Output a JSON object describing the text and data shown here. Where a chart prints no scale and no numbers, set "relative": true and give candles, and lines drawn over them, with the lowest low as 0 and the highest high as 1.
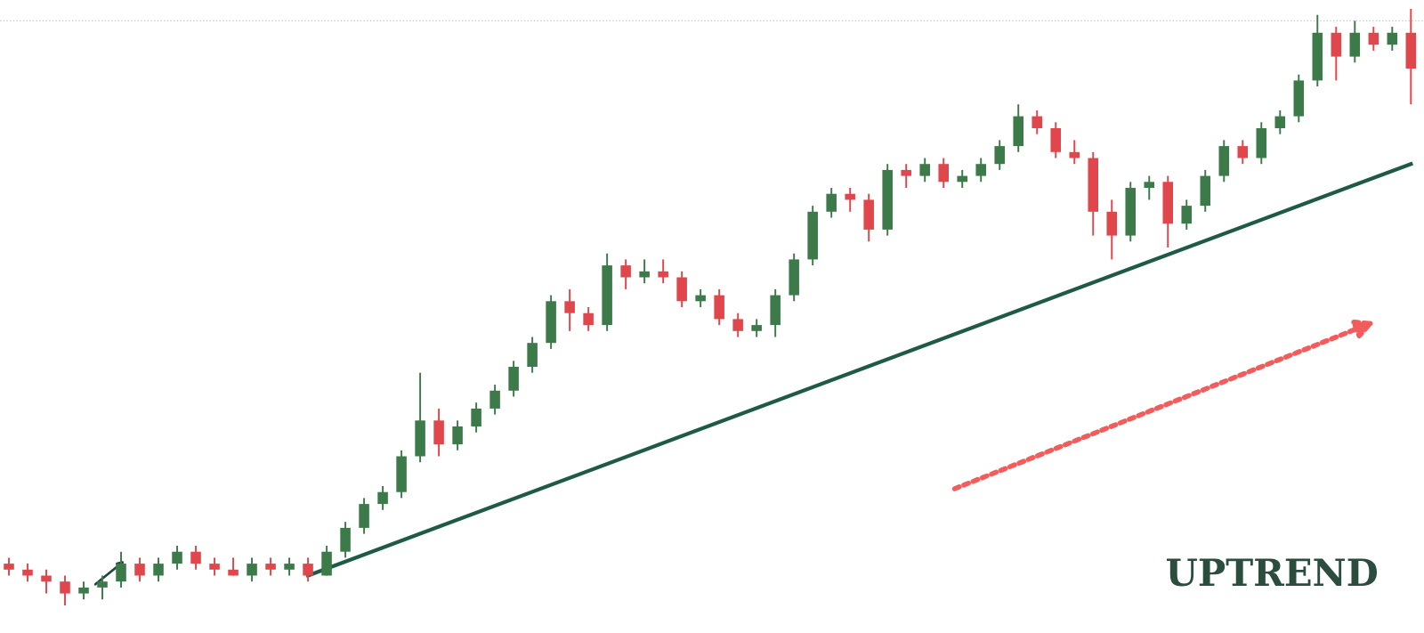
{
  "chart_data": {
    "type": "candlestick",
    "relative": true,
    "categories": [
      null,
      null,
      null,
      null,
      null,
      null,
      null,
      null,
      null,
      null,
      null,
      null,
      null,
      null,
      null,
      null,
      null,
      null,
      null,
      null,
      null,
      null,
      null,
      null,
      null,
      null,
      null,
      null,
      null,
      null,
      null,
      null,
      null,
      null,
      null,
      null,
      null,
      null,
      null,
      null,
      null,
      null,
      null,
      null,
      null,
      null,
      null,
      null,
      null,
      null,
      null,
      null,
      null,
      null,
      null,
      null,
      null,
      null,
      null,
      null,
      null,
      null,
      null,
      null,
      null,
      null,
      null,
      null,
      null,
      null,
      null,
      null,
      null,
      null,
      null,
      null
    ],
    "colors": [
      "#e0474c",
      "#e0474c",
      "#e0474c",
      "#e0474c",
      "#3d7a4a",
      "#3d7a4a",
      "#3d7a4a",
      "#e0474c",
      "#3d7a4a",
      "#3d7a4a",
      "#e0474c",
      "#e0474c",
      "#e0474c",
      "#3d7a4a",
      "#e0474c",
      "#3d7a4a",
      "#e0474c",
      "#3d7a4a",
      "#3d7a4a",
      "#3d7a4a",
      "#3d7a4a",
      "#3d7a4a",
      "#3d7a4a",
      "#e0474c",
      "#3d7a4a",
      "#3d7a4a",
      "#3d7a4a",
      "#3d7a4a",
      "#3d7a4a",
      "#3d7a4a",
      "#e0474c",
      "#e0474c",
      "#3d7a4a",
      "#e0474c",
      "#3d7a4a",
      "#e0474c",
      "#e0474c",
      "#3d7a4a",
      "#e0474c",
      "#e0474c",
      "#3d7a4a",
      "#3d7a4a",
      "#3d7a4a",
      "#3d7a4a",
      "#3d7a4a",
      "#e0474c",
      "#e0474c",
      "#3d7a4a",
      "#e0474c",
      "#3d7a4a",
      "#e0474c",
      "#3d7a4a",
      "#3d7a4a",
      "#3d7a4a",
      "#3d7a4a",
      "#e0474c",
      "#e0474c",
      "#e0474c",
      "#e0474c",
      "#e0474c",
      "#3d7a4a",
      "#3d7a4a",
      "#e0474c",
      "#3d7a4a",
      "#3d7a4a",
      "#3d7a4a",
      "#e0474c",
      "#3d7a4a",
      "#3d7a4a",
      "#3d7a4a",
      "#3d7a4a",
      "#e0474c",
      "#3d7a4a",
      "#e0474c",
      "#3d7a4a",
      "#e0474c"
    ],
    "ohlc": [
      [
        0.07,
        0.08,
        0.05,
        0.06
      ],
      [
        0.06,
        0.07,
        0.04,
        0.05
      ],
      [
        0.05,
        0.06,
        0.02,
        0.04
      ],
      [
        0.04,
        0.05,
        0.0,
        0.02
      ],
      [
        0.02,
        0.04,
        0.01,
        0.03
      ],
      [
        0.03,
        0.05,
        0.01,
        0.04
      ],
      [
        0.04,
        0.09,
        0.03,
        0.07
      ],
      [
        0.07,
        0.08,
        0.04,
        0.05
      ],
      [
        0.05,
        0.08,
        0.04,
        0.07
      ],
      [
        0.07,
        0.1,
        0.06,
        0.09
      ],
      [
        0.09,
        0.1,
        0.06,
        0.07
      ],
      [
        0.07,
        0.08,
        0.05,
        0.06
      ],
      [
        0.06,
        0.08,
        0.05,
        0.05
      ],
      [
        0.05,
        0.08,
        0.04,
        0.07
      ],
      [
        0.07,
        0.08,
        0.05,
        0.06
      ],
      [
        0.06,
        0.08,
        0.05,
        0.07
      ],
      [
        0.07,
        0.08,
        0.04,
        0.05
      ],
      [
        0.05,
        0.1,
        0.05,
        0.09
      ],
      [
        0.09,
        0.14,
        0.08,
        0.13
      ],
      [
        0.13,
        0.18,
        0.12,
        0.17
      ],
      [
        0.17,
        0.2,
        0.16,
        0.19
      ],
      [
        0.19,
        0.26,
        0.18,
        0.25
      ],
      [
        0.25,
        0.39,
        0.24,
        0.31
      ],
      [
        0.31,
        0.33,
        0.25,
        0.27
      ],
      [
        0.27,
        0.31,
        0.26,
        0.3
      ],
      [
        0.3,
        0.34,
        0.29,
        0.33
      ],
      [
        0.33,
        0.37,
        0.32,
        0.36
      ],
      [
        0.36,
        0.41,
        0.35,
        0.4
      ],
      [
        0.4,
        0.45,
        0.39,
        0.44
      ],
      [
        0.44,
        0.52,
        0.43,
        0.51
      ],
      [
        0.51,
        0.53,
        0.46,
        0.49
      ],
      [
        0.49,
        0.5,
        0.46,
        0.47
      ],
      [
        0.47,
        0.59,
        0.46,
        0.57
      ],
      [
        0.57,
        0.58,
        0.53,
        0.55
      ],
      [
        0.55,
        0.58,
        0.54,
        0.56
      ],
      [
        0.56,
        0.58,
        0.54,
        0.55
      ],
      [
        0.55,
        0.56,
        0.5,
        0.51
      ],
      [
        0.51,
        0.53,
        0.5,
        0.52
      ],
      [
        0.52,
        0.53,
        0.47,
        0.48
      ],
      [
        0.48,
        0.49,
        0.45,
        0.46
      ],
      [
        0.46,
        0.48,
        0.45,
        0.47
      ],
      [
        0.47,
        0.53,
        0.45,
        0.52
      ],
      [
        0.52,
        0.59,
        0.51,
        0.58
      ],
      [
        0.58,
        0.67,
        0.57,
        0.66
      ],
      [
        0.66,
        0.7,
        0.65,
        0.69
      ],
      [
        0.69,
        0.7,
        0.66,
        0.68
      ],
      [
        0.68,
        0.69,
        0.61,
        0.63
      ],
      [
        0.63,
        0.74,
        0.62,
        0.73
      ],
      [
        0.73,
        0.74,
        0.7,
        0.72
      ],
      [
        0.72,
        0.75,
        0.71,
        0.74
      ],
      [
        0.74,
        0.75,
        0.7,
        0.71
      ],
      [
        0.71,
        0.73,
        0.7,
        0.72
      ],
      [
        0.72,
        0.75,
        0.71,
        0.74
      ],
      [
        0.74,
        0.78,
        0.73,
        0.77
      ],
      [
        0.77,
        0.84,
        0.76,
        0.82
      ],
      [
        0.82,
        0.83,
        0.79,
        0.8
      ],
      [
        0.8,
        0.81,
        0.75,
        0.76
      ],
      [
        0.76,
        0.78,
        0.74,
        0.75
      ],
      [
        0.75,
        0.76,
        0.62,
        0.66
      ],
      [
        0.66,
        0.68,
        0.58,
        0.62
      ],
      [
        0.62,
        0.71,
        0.61,
        0.7
      ],
      [
        0.7,
        0.72,
        0.68,
        0.71
      ],
      [
        0.71,
        0.72,
        0.6,
        0.64
      ],
      [
        0.64,
        0.68,
        0.63,
        0.67
      ],
      [
        0.67,
        0.73,
        0.66,
        0.72
      ],
      [
        0.72,
        0.78,
        0.71,
        0.77
      ],
      [
        0.77,
        0.78,
        0.74,
        0.75
      ],
      [
        0.75,
        0.81,
        0.74,
        0.8
      ],
      [
        0.8,
        0.83,
        0.79,
        0.82
      ],
      [
        0.82,
        0.89,
        0.81,
        0.88
      ],
      [
        0.88,
        0.99,
        0.87,
        0.96
      ],
      [
        0.96,
        0.97,
        0.88,
        0.92
      ],
      [
        0.92,
        0.98,
        0.91,
        0.96
      ],
      [
        0.96,
        0.97,
        0.93,
        0.94
      ],
      [
        0.94,
        0.97,
        0.93,
        0.96
      ],
      [
        0.96,
        1.0,
        0.84,
        0.9
      ]
    ],
    "series": [
      {
        "type": "line",
        "color": "#1e5a46",
        "line_style": "solid",
        "values": [
          null,
          null,
          null,
          null,
          null,
          null,
          null,
          null,
          null,
          null,
          null,
          null,
          null,
          null,
          null,
          null,
          0.05,
          null,
          null,
          null,
          null,
          null,
          null,
          null,
          null,
          null,
          null,
          null,
          null,
          null,
          null,
          null,
          null,
          null,
          null,
          null,
          null,
          null,
          null,
          null,
          null,
          null,
          null,
          null,
          null,
          null,
          null,
          null,
          null,
          null,
          null,
          null,
          null,
          null,
          null,
          null,
          null,
          null,
          null,
          null,
          null,
          null,
          null,
          null,
          null,
          null,
          null,
          null,
          null,
          null,
          null,
          null,
          null,
          null,
          null,
          0.74
        ]
      }
    ],
    "ref_lines": [
      {
        "axis": "y",
        "value": 0.98,
        "color": "#c8c8c8",
        "line_style": "dotted"
      }
    ],
    "annotations": [
      "UPTREND"
    ]
  }
}
